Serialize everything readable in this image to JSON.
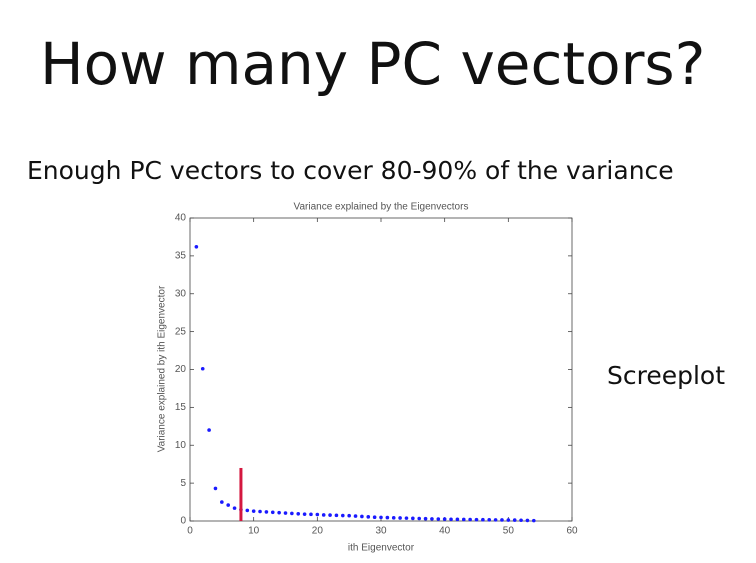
{
  "slide": {
    "title": "How many PC vectors?",
    "subtitle": "Enough PC vectors to cover 80-90% of the variance",
    "side_label": "Screeplot"
  },
  "chart_data": {
    "type": "scatter",
    "title": "Variance explained by the Eigenvectors",
    "x_label": "ith Eigenvector",
    "y_label": "Variance explained by ith Eigenvector",
    "x": [
      1,
      2,
      3,
      4,
      5,
      6,
      7,
      8,
      9,
      10,
      11,
      12,
      13,
      14,
      15,
      16,
      17,
      18,
      19,
      20,
      21,
      22,
      23,
      24,
      25,
      26,
      27,
      28,
      29,
      30,
      31,
      32,
      33,
      34,
      35,
      36,
      37,
      38,
      39,
      40,
      41,
      42,
      43,
      44,
      45,
      46,
      47,
      48,
      49,
      50,
      51,
      52,
      53,
      54
    ],
    "values": [
      36.2,
      20.1,
      12.0,
      4.3,
      2.5,
      2.1,
      1.7,
      1.5,
      1.4,
      1.3,
      1.25,
      1.2,
      1.15,
      1.1,
      1.05,
      1.0,
      0.95,
      0.9,
      0.88,
      0.85,
      0.8,
      0.78,
      0.75,
      0.72,
      0.7,
      0.65,
      0.6,
      0.55,
      0.5,
      0.48,
      0.45,
      0.42,
      0.4,
      0.38,
      0.35,
      0.33,
      0.3,
      0.28,
      0.26,
      0.25,
      0.23,
      0.22,
      0.2,
      0.19,
      0.18,
      0.17,
      0.16,
      0.15,
      0.14,
      0.13,
      0.12,
      0.1,
      0.08,
      0.05
    ],
    "color": "#1a1aff",
    "xlim": [
      0,
      60
    ],
    "ylim": [
      0,
      40
    ],
    "xticks": [
      0,
      10,
      20,
      30,
      40,
      50,
      60
    ],
    "yticks": [
      0,
      5,
      10,
      15,
      20,
      25,
      30,
      35,
      40
    ],
    "vline": {
      "x": 8,
      "ymax": 7,
      "color": "#d4173f"
    }
  }
}
